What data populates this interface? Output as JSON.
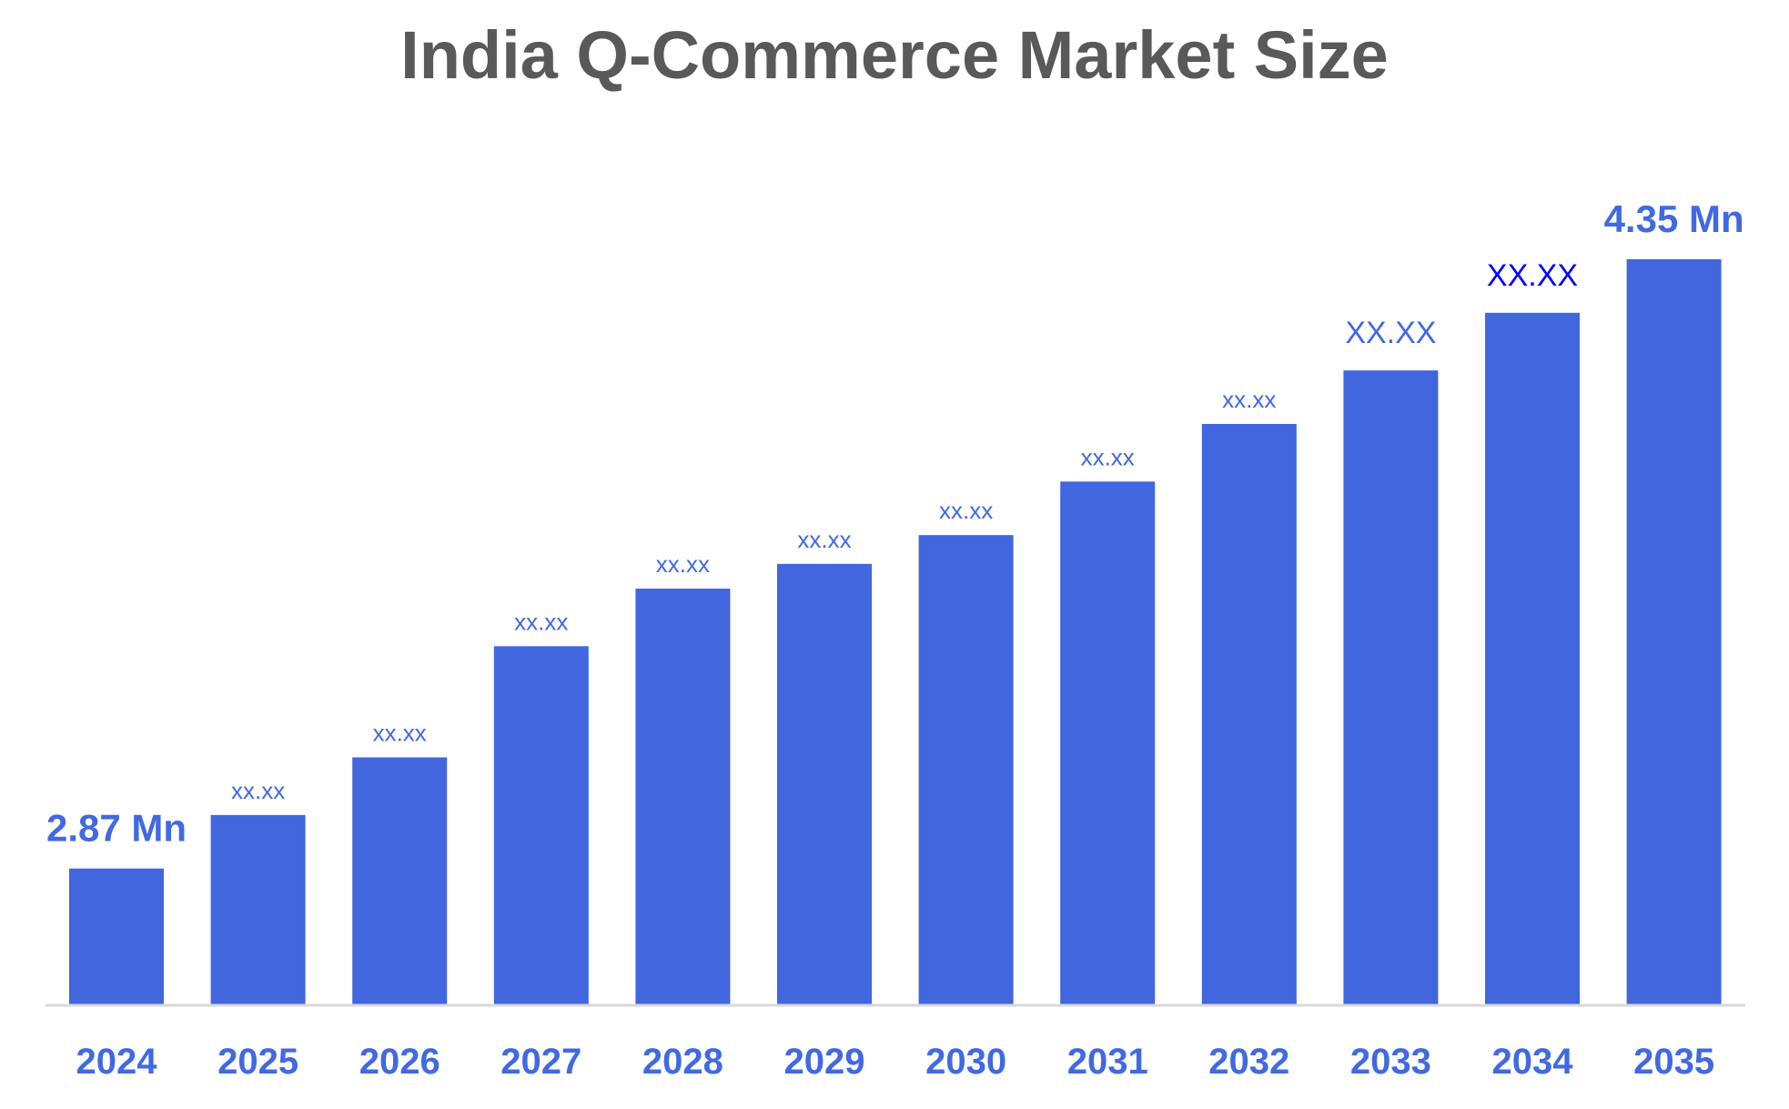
{
  "chart_data": {
    "type": "bar",
    "title": "India Q-Commerce Market Size",
    "xlabel": "",
    "ylabel": "",
    "categories": [
      "2024",
      "2025",
      "2026",
      "2027",
      "2028",
      "2029",
      "2030",
      "2031",
      "2032",
      "2033",
      "2034",
      "2035"
    ],
    "values": [
      2.87,
      3.0,
      3.14,
      3.41,
      3.55,
      3.61,
      3.68,
      3.81,
      3.95,
      4.08,
      4.22,
      4.35
    ],
    "data_labels": [
      "2.87 Mn",
      "xx.xx",
      "xx.xx",
      "xx.xx",
      "xx.xx",
      "xx.xx",
      "xx.xx",
      "xx.xx",
      "xx.xx",
      "XX.XX",
      "XX.XX",
      "4.35 Mn"
    ],
    "label_styles": [
      "large",
      "small",
      "small",
      "small",
      "small",
      "small",
      "small",
      "small",
      "small",
      "medium",
      "medium-blue",
      "large"
    ],
    "ylim": [
      2.54,
      4.35
    ],
    "grid": false,
    "legend": "none",
    "colors": {
      "bar": "#4166DD",
      "label": "#4169E1",
      "label_alt": "#0000FF",
      "title": "#595959",
      "axis": "#D9D9D9"
    }
  }
}
